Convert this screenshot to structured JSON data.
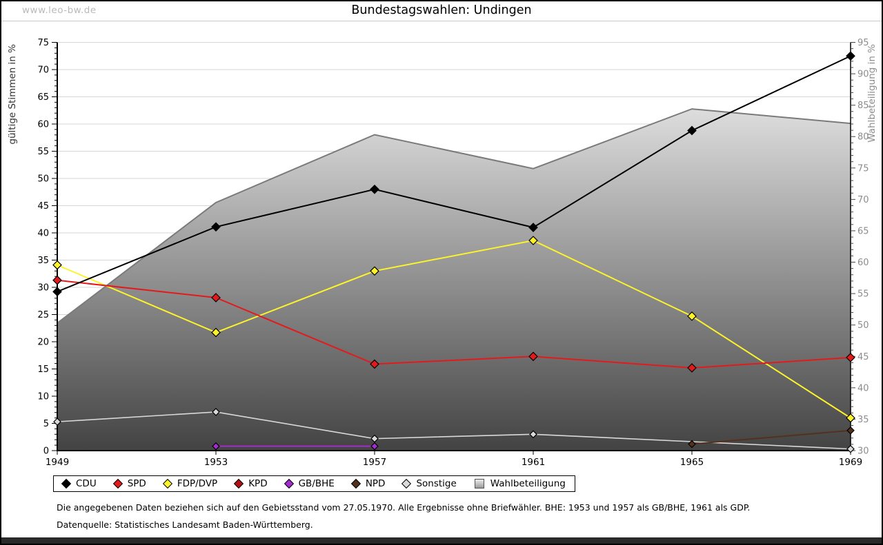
{
  "header": {
    "watermark": "www.leo-bw.de",
    "title": "Bundestagswahlen: Undingen"
  },
  "chart_data": {
    "type": "line",
    "title": "Bundestagswahlen: Undingen",
    "categories": [
      "1949",
      "1953",
      "1957",
      "1961",
      "1965",
      "1969"
    ],
    "left_axis": {
      "label": "gültige Stimmen in %",
      "min": 0,
      "max": 75,
      "major_step": 5,
      "minor_step": 1
    },
    "right_axis": {
      "label": "Wahlbeteiligung in %",
      "min": 30,
      "max": 95,
      "major_step": 5,
      "minor_step": 1
    },
    "grid": true,
    "legend_position": "bottom",
    "series": [
      {
        "name": "CDU",
        "axis": "left",
        "shape": "diamond",
        "color": "#000000",
        "values": [
          29.2,
          41.1,
          48.0,
          41.0,
          58.8,
          72.5
        ]
      },
      {
        "name": "SPD",
        "axis": "left",
        "shape": "diamond",
        "color": "#e31a1c",
        "values": [
          31.3,
          28.1,
          15.9,
          17.3,
          15.2,
          17.1
        ]
      },
      {
        "name": "FDP/DVP",
        "axis": "left",
        "shape": "diamond",
        "color": "#fdf32b",
        "values": [
          34.1,
          21.7,
          33.0,
          38.6,
          24.7,
          6.0
        ]
      },
      {
        "name": "KPD",
        "axis": "left",
        "shape": "diamond",
        "color": "#b01116",
        "values": [
          null,
          null,
          null,
          null,
          null,
          null
        ]
      },
      {
        "name": "GB/BHE",
        "axis": "left",
        "shape": "diamond",
        "color": "#a22bd1",
        "values": [
          null,
          0.8,
          0.8,
          null,
          null,
          null
        ]
      },
      {
        "name": "NPD",
        "axis": "left",
        "shape": "diamond",
        "color": "#54311d",
        "values": [
          null,
          null,
          null,
          null,
          1.2,
          3.7
        ]
      },
      {
        "name": "Sonstige",
        "axis": "left",
        "shape": "diamond",
        "color": "#d9d9d9",
        "values": [
          5.3,
          7.1,
          2.2,
          3.0,
          null,
          0.3
        ]
      },
      {
        "name": "Wahlbeteiligung",
        "axis": "right",
        "shape": "square",
        "type": "area",
        "color": "#7a7a7a",
        "area_gradient": [
          "#fbfbfb",
          "#434343"
        ],
        "values": [
          50.3,
          69.5,
          80.3,
          74.9,
          84.4,
          82.1
        ]
      }
    ]
  },
  "footer": {
    "line1": "Die angegebenen Daten beziehen sich auf den Gebietsstand vom 27.05.1970. Alle Ergebnisse ohne Briefwähler. BHE: 1953 und 1957 als GB/BHE, 1961 als GDP.",
    "line2": "Datenquelle: Statistisches Landesamt Baden-Württemberg."
  }
}
